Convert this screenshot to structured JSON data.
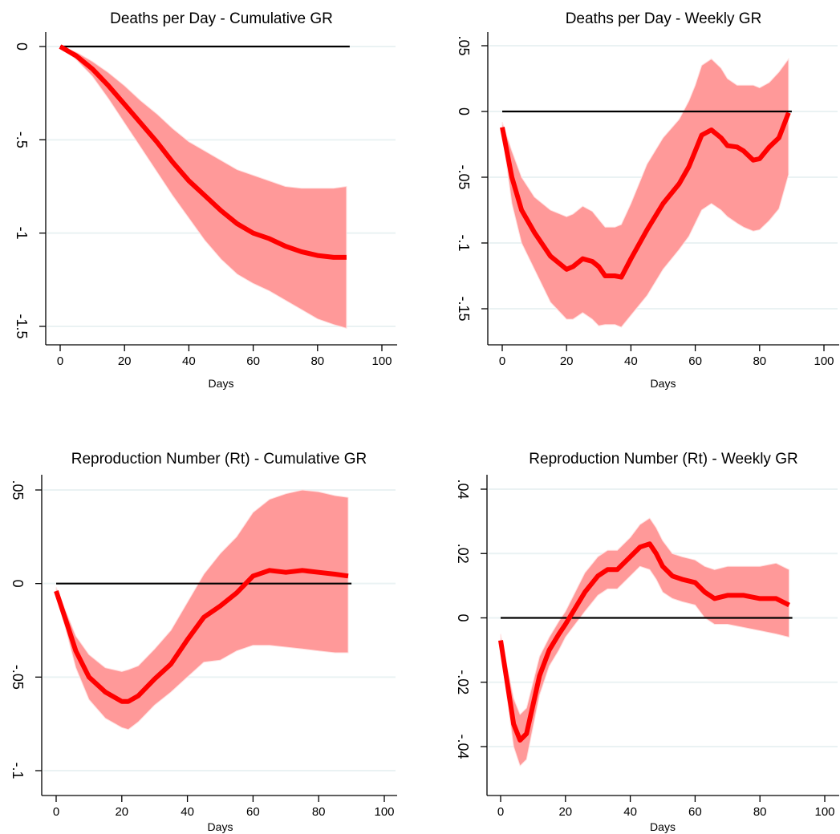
{
  "colors": {
    "band": "#ff9999",
    "line": "#ff0000",
    "zero_line": "#000000",
    "grid": "#eaf2f3",
    "axis": "#000000"
  },
  "chart_data": [
    {
      "type": "line",
      "title": "Deaths per Day - Cumulative GR",
      "xlabel": "Days",
      "ylabel": "",
      "xlim": [
        0,
        100
      ],
      "ylim": [
        -1.5,
        0
      ],
      "xticks": [
        0,
        20,
        40,
        60,
        80,
        100
      ],
      "xtick_labels": [
        "0",
        "20",
        "40",
        "60",
        "80",
        "100"
      ],
      "yticks": [
        0,
        -0.5,
        -1,
        -1.5
      ],
      "ytick_labels": [
        "0",
        "-.5",
        "-1",
        "-1.5"
      ],
      "grid": true,
      "zero_line": {
        "y": 0,
        "x": [
          0,
          90
        ]
      },
      "series": [
        {
          "type": "line",
          "x": [
            0,
            5,
            10,
            15,
            20,
            25,
            30,
            35,
            40,
            45,
            50,
            55,
            60,
            65,
            70,
            75,
            80,
            85,
            89
          ],
          "y": [
            0,
            -0.05,
            -0.12,
            -0.21,
            -0.31,
            -0.41,
            -0.51,
            -0.62,
            -0.72,
            -0.8,
            -0.88,
            -0.95,
            -1.0,
            -1.03,
            -1.07,
            -1.1,
            -1.12,
            -1.13,
            -1.13
          ]
        },
        {
          "type": "band",
          "x": [
            0,
            5,
            10,
            15,
            20,
            25,
            30,
            35,
            40,
            45,
            50,
            55,
            60,
            65,
            70,
            75,
            80,
            85,
            89
          ],
          "upper": [
            0,
            -0.03,
            -0.08,
            -0.14,
            -0.21,
            -0.29,
            -0.36,
            -0.44,
            -0.51,
            -0.56,
            -0.61,
            -0.66,
            -0.69,
            -0.72,
            -0.75,
            -0.76,
            -0.76,
            -0.76,
            -0.75
          ],
          "lower": [
            0,
            -0.07,
            -0.16,
            -0.28,
            -0.41,
            -0.54,
            -0.67,
            -0.8,
            -0.92,
            -1.04,
            -1.14,
            -1.22,
            -1.27,
            -1.31,
            -1.36,
            -1.41,
            -1.46,
            -1.49,
            -1.51
          ]
        }
      ]
    },
    {
      "type": "line",
      "title": "Deaths per Day - Weekly GR",
      "xlabel": "Days",
      "ylabel": "",
      "xlim": [
        0,
        100
      ],
      "ylim": [
        -0.15,
        0.05
      ],
      "xticks": [
        0,
        20,
        40,
        60,
        80,
        100
      ],
      "xtick_labels": [
        "0",
        "20",
        "40",
        "60",
        "80",
        "100"
      ],
      "yticks": [
        0.05,
        0,
        -0.05,
        -0.1,
        -0.15
      ],
      "ytick_labels": [
        ".05",
        "0",
        "-.05",
        "-.1",
        "-.15"
      ],
      "grid": true,
      "zero_line": {
        "y": 0,
        "x": [
          0,
          90
        ]
      },
      "series": [
        {
          "type": "line",
          "x": [
            0,
            3,
            6,
            10,
            15,
            20,
            22,
            25,
            28,
            30,
            32,
            35,
            37,
            40,
            45,
            50,
            55,
            58,
            60,
            62,
            65,
            68,
            70,
            73,
            75,
            78,
            80,
            83,
            86,
            89
          ],
          "y": [
            -0.012,
            -0.05,
            -0.075,
            -0.092,
            -0.11,
            -0.12,
            -0.118,
            -0.112,
            -0.114,
            -0.118,
            -0.125,
            -0.125,
            -0.126,
            -0.112,
            -0.09,
            -0.07,
            -0.055,
            -0.042,
            -0.03,
            -0.018,
            -0.014,
            -0.02,
            -0.026,
            -0.027,
            -0.03,
            -0.037,
            -0.036,
            -0.027,
            -0.02,
            -0.001
          ]
        },
        {
          "type": "band",
          "x": [
            0,
            3,
            6,
            10,
            15,
            20,
            22,
            25,
            28,
            30,
            32,
            35,
            37,
            40,
            45,
            50,
            55,
            58,
            60,
            62,
            65,
            68,
            70,
            73,
            75,
            78,
            80,
            83,
            86,
            89
          ],
          "upper": [
            -0.008,
            -0.03,
            -0.05,
            -0.065,
            -0.075,
            -0.08,
            -0.078,
            -0.072,
            -0.076,
            -0.082,
            -0.088,
            -0.088,
            -0.086,
            -0.07,
            -0.04,
            -0.02,
            -0.006,
            0.008,
            0.02,
            0.035,
            0.04,
            0.033,
            0.025,
            0.02,
            0.02,
            0.02,
            0.018,
            0.022,
            0.03,
            0.04
          ],
          "lower": [
            -0.016,
            -0.07,
            -0.1,
            -0.12,
            -0.145,
            -0.158,
            -0.158,
            -0.153,
            -0.158,
            -0.163,
            -0.162,
            -0.162,
            -0.164,
            -0.155,
            -0.14,
            -0.12,
            -0.105,
            -0.095,
            -0.085,
            -0.075,
            -0.07,
            -0.075,
            -0.08,
            -0.085,
            -0.088,
            -0.091,
            -0.09,
            -0.083,
            -0.074,
            -0.048
          ]
        }
      ]
    },
    {
      "type": "line",
      "title": "Reproduction Number (Rt) - Cumulative GR",
      "xlabel": "Days",
      "ylabel": "",
      "xlim": [
        0,
        100
      ],
      "ylim": [
        -0.1,
        0.05
      ],
      "xticks": [
        0,
        20,
        40,
        60,
        80,
        100
      ],
      "xtick_labels": [
        "0",
        "20",
        "40",
        "60",
        "80",
        "100"
      ],
      "yticks": [
        0.05,
        0,
        -0.05,
        -0.1
      ],
      "ytick_labels": [
        ".05",
        "0",
        "-.05",
        "-.1"
      ],
      "grid": true,
      "zero_line": {
        "y": 0,
        "x": [
          0,
          90
        ]
      },
      "series": [
        {
          "type": "line",
          "x": [
            0,
            3,
            6,
            10,
            15,
            20,
            22,
            25,
            30,
            35,
            40,
            45,
            50,
            55,
            60,
            65,
            70,
            75,
            80,
            85,
            89
          ],
          "y": [
            -0.004,
            -0.02,
            -0.036,
            -0.05,
            -0.058,
            -0.063,
            -0.063,
            -0.06,
            -0.051,
            -0.043,
            -0.03,
            -0.018,
            -0.012,
            -0.005,
            0.004,
            0.007,
            0.006,
            0.007,
            0.006,
            0.005,
            0.004
          ]
        },
        {
          "type": "band",
          "x": [
            0,
            3,
            6,
            10,
            15,
            20,
            22,
            25,
            30,
            35,
            40,
            45,
            50,
            55,
            60,
            65,
            70,
            75,
            80,
            85,
            89
          ],
          "upper": [
            -0.002,
            -0.015,
            -0.028,
            -0.038,
            -0.045,
            -0.047,
            -0.046,
            -0.044,
            -0.035,
            -0.025,
            -0.01,
            0.005,
            0.016,
            0.025,
            0.038,
            0.045,
            0.048,
            0.05,
            0.049,
            0.047,
            0.046
          ],
          "lower": [
            -0.006,
            -0.025,
            -0.045,
            -0.062,
            -0.072,
            -0.077,
            -0.078,
            -0.074,
            -0.065,
            -0.058,
            -0.05,
            -0.042,
            -0.041,
            -0.036,
            -0.033,
            -0.033,
            -0.034,
            -0.035,
            -0.036,
            -0.037,
            -0.037
          ]
        }
      ]
    },
    {
      "type": "line",
      "title": "Reproduction Number (Rt) - Weekly GR",
      "xlabel": "Days",
      "ylabel": "",
      "xlim": [
        0,
        100
      ],
      "ylim": [
        -0.04,
        0.04
      ],
      "xticks": [
        0,
        20,
        40,
        60,
        80,
        100
      ],
      "xtick_labels": [
        "0",
        "20",
        "40",
        "60",
        "80",
        "100"
      ],
      "yticks": [
        0.04,
        0.02,
        0,
        -0.02,
        -0.04
      ],
      "ytick_labels": [
        ".04",
        ".02",
        "0",
        "-.02",
        "-.04"
      ],
      "grid": true,
      "zero_line": {
        "y": 0,
        "x": [
          0,
          90
        ]
      },
      "series": [
        {
          "type": "line",
          "x": [
            0,
            2,
            4,
            6,
            8,
            10,
            12,
            15,
            18,
            20,
            23,
            26,
            30,
            33,
            36,
            40,
            43,
            46,
            48,
            50,
            53,
            56,
            60,
            63,
            66,
            70,
            75,
            80,
            85,
            89
          ],
          "y": [
            -0.007,
            -0.02,
            -0.033,
            -0.038,
            -0.036,
            -0.027,
            -0.018,
            -0.01,
            -0.005,
            -0.002,
            0.003,
            0.008,
            0.013,
            0.015,
            0.015,
            0.019,
            0.022,
            0.023,
            0.02,
            0.016,
            0.013,
            0.012,
            0.011,
            0.008,
            0.006,
            0.007,
            0.007,
            0.006,
            0.006,
            0.004
          ]
        },
        {
          "type": "band",
          "x": [
            0,
            2,
            4,
            6,
            8,
            10,
            12,
            15,
            18,
            20,
            23,
            26,
            30,
            33,
            36,
            40,
            43,
            46,
            48,
            50,
            53,
            56,
            60,
            63,
            66,
            70,
            75,
            80,
            85,
            89
          ],
          "upper": [
            -0.005,
            -0.015,
            -0.025,
            -0.03,
            -0.028,
            -0.02,
            -0.012,
            -0.006,
            -0.001,
            0.002,
            0.008,
            0.014,
            0.019,
            0.021,
            0.021,
            0.025,
            0.029,
            0.031,
            0.028,
            0.024,
            0.02,
            0.019,
            0.018,
            0.016,
            0.015,
            0.016,
            0.016,
            0.016,
            0.017,
            0.015
          ],
          "lower": [
            -0.009,
            -0.025,
            -0.04,
            -0.046,
            -0.044,
            -0.034,
            -0.024,
            -0.015,
            -0.01,
            -0.006,
            -0.002,
            0.002,
            0.007,
            0.009,
            0.009,
            0.013,
            0.016,
            0.015,
            0.012,
            0.008,
            0.006,
            0.005,
            0.004,
            0.0,
            -0.002,
            -0.002,
            -0.003,
            -0.004,
            -0.005,
            -0.006
          ]
        }
      ]
    }
  ]
}
